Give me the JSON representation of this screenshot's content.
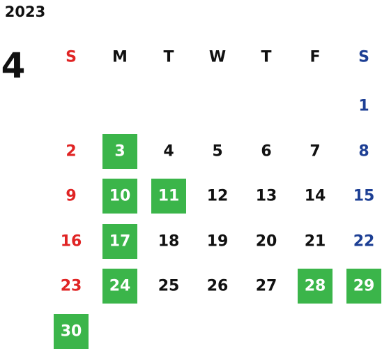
{
  "year": "2023",
  "month": "4",
  "weekdays": [
    "S",
    "M",
    "T",
    "W",
    "T",
    "F",
    "S"
  ],
  "weeks": [
    [
      null,
      null,
      null,
      null,
      null,
      null,
      1
    ],
    [
      2,
      3,
      4,
      5,
      6,
      7,
      8
    ],
    [
      9,
      10,
      11,
      12,
      13,
      14,
      15
    ],
    [
      16,
      17,
      18,
      19,
      20,
      21,
      22
    ],
    [
      23,
      24,
      25,
      26,
      27,
      28,
      29
    ],
    [
      30,
      null,
      null,
      null,
      null,
      null,
      null
    ]
  ],
  "highlighted_days": [
    3,
    10,
    11,
    17,
    24,
    28,
    29,
    30
  ],
  "sunday_color": "#e02424",
  "saturday_color": "#1d3f94",
  "weekday_color": "#111111",
  "highlight_color": "#3bb54a"
}
